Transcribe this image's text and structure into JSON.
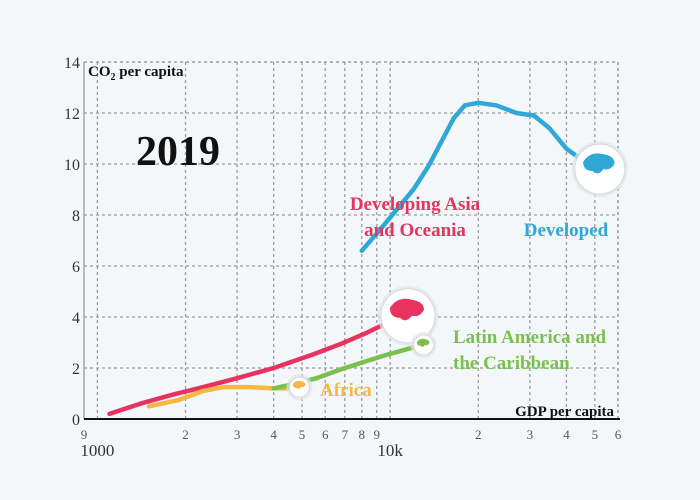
{
  "chart_data": {
    "type": "line",
    "year": "2019",
    "ylabel_main": "CO",
    "ylabel_sub": "2",
    "ylabel_rest": " per capita",
    "xlabel": "GDP per capita",
    "ylim": [
      0,
      14
    ],
    "xlim": [
      900,
      60000
    ],
    "x_scale": "log",
    "y_ticks": [
      0,
      2,
      4,
      6,
      8,
      10,
      12,
      14
    ],
    "x_minor_ticks": [
      {
        "value": 900,
        "label": "9"
      },
      {
        "value": 2000,
        "label": "2"
      },
      {
        "value": 3000,
        "label": "3"
      },
      {
        "value": 4000,
        "label": "4"
      },
      {
        "value": 5000,
        "label": "5"
      },
      {
        "value": 6000,
        "label": "6"
      },
      {
        "value": 7000,
        "label": "7"
      },
      {
        "value": 8000,
        "label": "8"
      },
      {
        "value": 9000,
        "label": "9"
      },
      {
        "value": 20000,
        "label": "2"
      },
      {
        "value": 30000,
        "label": "3"
      },
      {
        "value": 40000,
        "label": "4"
      },
      {
        "value": 50000,
        "label": "5"
      },
      {
        "value": 60000,
        "label": "6"
      }
    ],
    "x_major_ticks": [
      {
        "value": 1000,
        "label": "1000"
      },
      {
        "value": 10000,
        "label": "10k"
      }
    ],
    "grid": true,
    "series": [
      {
        "name": "Developing Asia and Oceania",
        "label_lines": [
          "Developing Asia",
          "and Oceania"
        ],
        "color": "#e8335f",
        "points": [
          [
            1100,
            0.2
          ],
          [
            1400,
            0.6
          ],
          [
            1800,
            0.95
          ],
          [
            2300,
            1.25
          ],
          [
            3000,
            1.6
          ],
          [
            4000,
            2.0
          ],
          [
            5500,
            2.55
          ],
          [
            6800,
            2.95
          ],
          [
            8200,
            3.35
          ],
          [
            9500,
            3.7
          ],
          [
            11500,
            4.05
          ]
        ]
      },
      {
        "name": "Africa",
        "label_lines": [
          "Africa"
        ],
        "color": "#f5b942",
        "points": [
          [
            1500,
            0.5
          ],
          [
            1900,
            0.75
          ],
          [
            2300,
            1.1
          ],
          [
            2700,
            1.25
          ],
          [
            3300,
            1.25
          ],
          [
            4000,
            1.2
          ],
          [
            4600,
            1.2
          ],
          [
            4900,
            1.25
          ]
        ]
      },
      {
        "name": "Latin America and the Caribbean",
        "label_lines": [
          "Latin America and",
          "the Caribbean"
        ],
        "color": "#7bc04e",
        "points": [
          [
            4000,
            1.2
          ],
          [
            4800,
            1.4
          ],
          [
            5600,
            1.6
          ],
          [
            6800,
            1.95
          ],
          [
            8200,
            2.25
          ],
          [
            9600,
            2.5
          ],
          [
            11500,
            2.75
          ],
          [
            13000,
            2.9
          ]
        ]
      },
      {
        "name": "Developed",
        "label_lines": [
          "Developed"
        ],
        "color": "#2fa8d8",
        "points": [
          [
            8000,
            6.6
          ],
          [
            9200,
            7.4
          ],
          [
            10500,
            8.2
          ],
          [
            12000,
            9.0
          ],
          [
            13500,
            9.9
          ],
          [
            15000,
            10.9
          ],
          [
            16500,
            11.8
          ],
          [
            18000,
            12.3
          ],
          [
            20000,
            12.4
          ],
          [
            23000,
            12.3
          ],
          [
            27000,
            12.0
          ],
          [
            31000,
            11.9
          ],
          [
            35000,
            11.4
          ],
          [
            40000,
            10.6
          ],
          [
            46000,
            10.1
          ],
          [
            52000,
            9.8
          ]
        ]
      }
    ]
  }
}
